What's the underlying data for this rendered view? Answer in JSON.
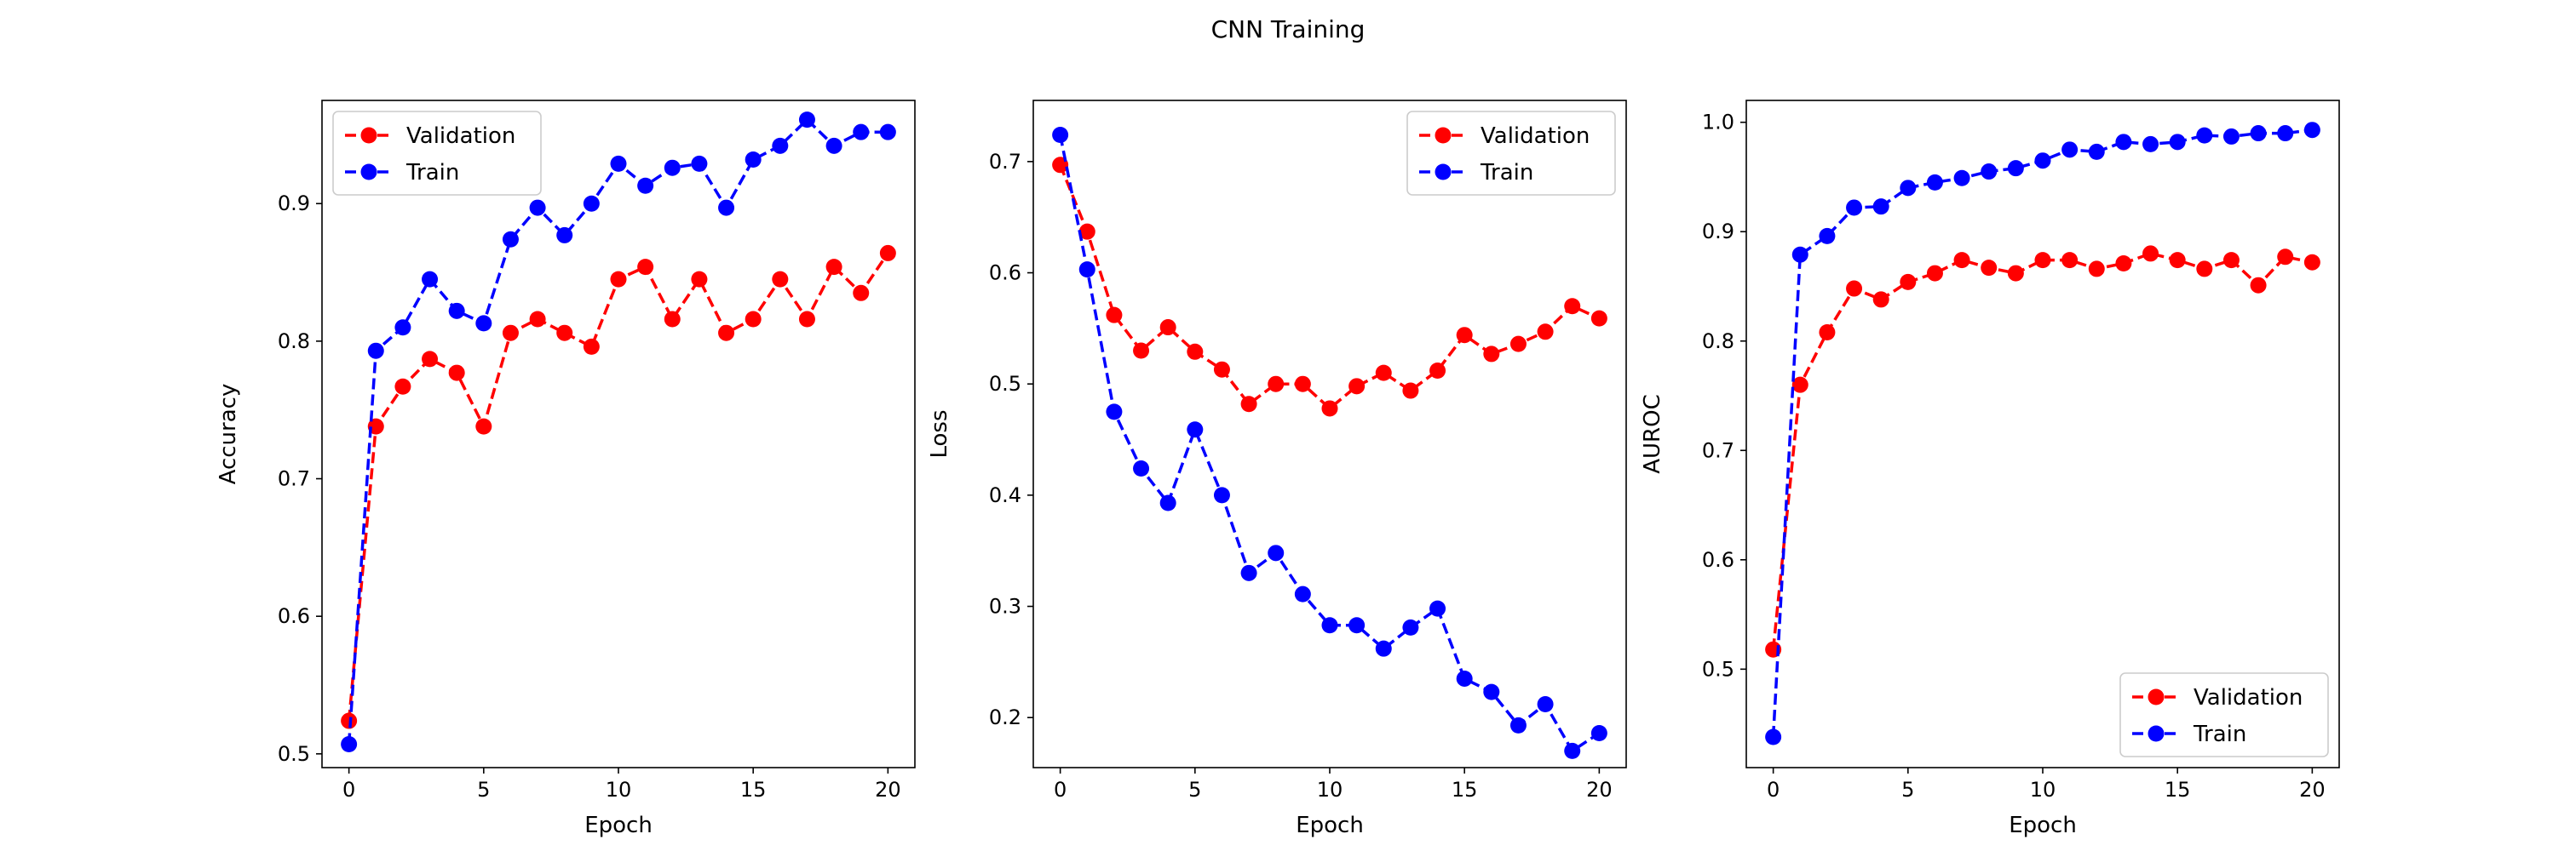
{
  "title": "CNN Training",
  "colors": {
    "validation": "#ff0000",
    "train": "#0000ff"
  },
  "chart_data": [
    {
      "type": "line",
      "xlabel": "Epoch",
      "ylabel": "Accuracy",
      "xlim": [
        -1,
        21
      ],
      "ylim": [
        0.49,
        0.975
      ],
      "xticks": [
        0,
        5,
        10,
        15,
        20
      ],
      "yticks": [
        0.5,
        0.6,
        0.7,
        0.8,
        0.9
      ],
      "ytick_labels": [
        "0.5",
        "0.6",
        "0.7",
        "0.8",
        "0.9"
      ],
      "legend_position": "upper left",
      "x": [
        0,
        1,
        2,
        3,
        4,
        5,
        6,
        7,
        8,
        9,
        10,
        11,
        12,
        13,
        14,
        15,
        16,
        17,
        18,
        19,
        20
      ],
      "series": [
        {
          "name": "Validation",
          "color": "#ff0000",
          "values": [
            0.524,
            0.738,
            0.767,
            0.787,
            0.777,
            0.738,
            0.806,
            0.816,
            0.806,
            0.796,
            0.845,
            0.854,
            0.816,
            0.845,
            0.806,
            0.816,
            0.845,
            0.816,
            0.854,
            0.835,
            0.864
          ]
        },
        {
          "name": "Train",
          "color": "#0000ff",
          "values": [
            0.507,
            0.793,
            0.81,
            0.845,
            0.822,
            0.813,
            0.874,
            0.897,
            0.877,
            0.9,
            0.929,
            0.913,
            0.926,
            0.929,
            0.897,
            0.932,
            0.942,
            0.961,
            0.942,
            0.952,
            0.952
          ]
        }
      ]
    },
    {
      "type": "line",
      "xlabel": "Epoch",
      "ylabel": "Loss",
      "xlim": [
        -1,
        21
      ],
      "ylim": [
        0.155,
        0.755
      ],
      "xticks": [
        0,
        5,
        10,
        15,
        20
      ],
      "yticks": [
        0.2,
        0.3,
        0.4,
        0.5,
        0.6,
        0.7
      ],
      "ytick_labels": [
        "0.2",
        "0.3",
        "0.4",
        "0.5",
        "0.6",
        "0.7"
      ],
      "legend_position": "upper right",
      "x": [
        0,
        1,
        2,
        3,
        4,
        5,
        6,
        7,
        8,
        9,
        10,
        11,
        12,
        13,
        14,
        15,
        16,
        17,
        18,
        19,
        20
      ],
      "series": [
        {
          "name": "Validation",
          "color": "#ff0000",
          "values": [
            0.697,
            0.637,
            0.562,
            0.53,
            0.551,
            0.529,
            0.513,
            0.482,
            0.5,
            0.5,
            0.478,
            0.498,
            0.51,
            0.494,
            0.512,
            0.544,
            0.527,
            0.536,
            0.547,
            0.57,
            0.559
          ]
        },
        {
          "name": "Train",
          "color": "#0000ff",
          "values": [
            0.724,
            0.603,
            0.475,
            0.424,
            0.393,
            0.459,
            0.4,
            0.33,
            0.348,
            0.311,
            0.283,
            0.283,
            0.262,
            0.281,
            0.298,
            0.235,
            0.223,
            0.193,
            0.212,
            0.17,
            0.186
          ]
        }
      ]
    },
    {
      "type": "line",
      "xlabel": "Epoch",
      "ylabel": "AUROC",
      "xlim": [
        -1,
        21
      ],
      "ylim": [
        0.41,
        1.02
      ],
      "xticks": [
        0,
        5,
        10,
        15,
        20
      ],
      "yticks": [
        0.5,
        0.6,
        0.7,
        0.8,
        0.9,
        1.0
      ],
      "ytick_labels": [
        "0.5",
        "0.6",
        "0.7",
        "0.8",
        "0.9",
        "1.0"
      ],
      "legend_position": "lower right",
      "x": [
        0,
        1,
        2,
        3,
        4,
        5,
        6,
        7,
        8,
        9,
        10,
        11,
        12,
        13,
        14,
        15,
        16,
        17,
        18,
        19,
        20
      ],
      "series": [
        {
          "name": "Validation",
          "color": "#ff0000",
          "values": [
            0.518,
            0.76,
            0.808,
            0.848,
            0.838,
            0.854,
            0.862,
            0.874,
            0.867,
            0.862,
            0.874,
            0.874,
            0.866,
            0.871,
            0.88,
            0.874,
            0.866,
            0.874,
            0.851,
            0.877,
            0.872
          ]
        },
        {
          "name": "Train",
          "color": "#0000ff",
          "values": [
            0.438,
            0.879,
            0.896,
            0.922,
            0.923,
            0.94,
            0.945,
            0.949,
            0.955,
            0.958,
            0.965,
            0.975,
            0.973,
            0.982,
            0.98,
            0.982,
            0.988,
            0.987,
            0.99,
            0.99,
            0.993
          ]
        }
      ]
    }
  ]
}
